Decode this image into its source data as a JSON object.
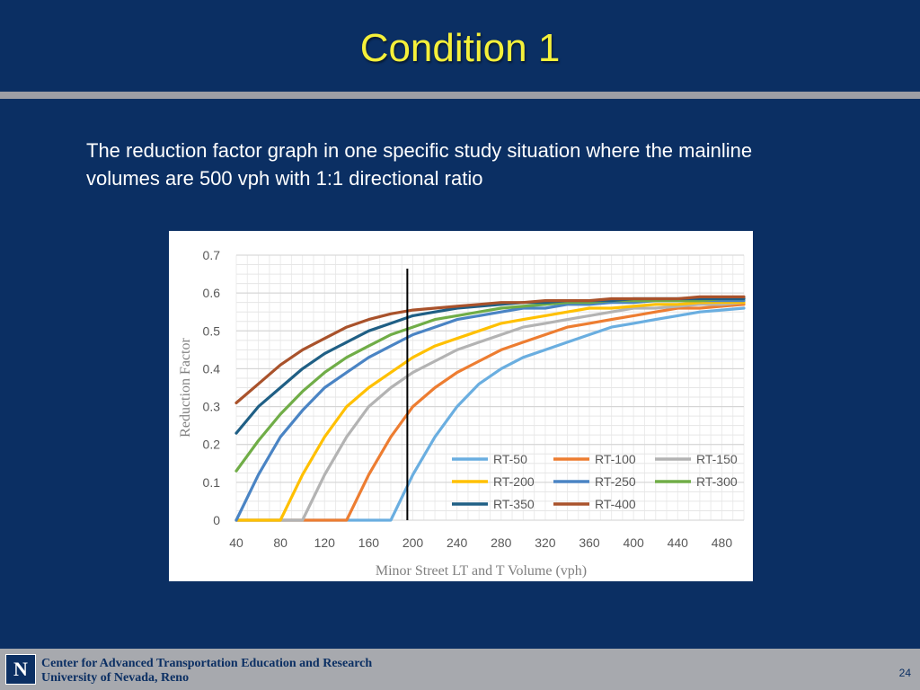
{
  "slide": {
    "title": "Condition 1",
    "subtitle": "The reduction factor graph in one specific study situation where the mainline volumes are 500 vph with 1:1 directional ratio",
    "page_number": "24",
    "footer": {
      "logo_text": "N",
      "line1": "Center for Advanced Transportation Education and Research",
      "line2": "University of Nevada, Reno"
    },
    "colors": {
      "background": "#0b2f63",
      "title": "#f5f03a",
      "rule": "#9c9ea5"
    }
  },
  "chart_data": {
    "type": "line",
    "xlabel": "Minor Street LT and T Volume (vph)",
    "ylabel": "Reduction Factor",
    "xlim": [
      40,
      500
    ],
    "ylim": [
      0,
      0.7
    ],
    "x_ticks": [
      40,
      80,
      120,
      160,
      200,
      240,
      280,
      320,
      360,
      400,
      440,
      480
    ],
    "y_ticks": [
      0,
      0.1,
      0.2,
      0.3,
      0.4,
      0.5,
      0.6,
      0.7
    ],
    "grid": true,
    "legend_position": "bottom-right",
    "vertical_marker_x": 195,
    "x": [
      40,
      60,
      80,
      100,
      120,
      140,
      160,
      180,
      200,
      220,
      240,
      260,
      280,
      300,
      320,
      340,
      360,
      380,
      400,
      420,
      440,
      460,
      480,
      500
    ],
    "series": [
      {
        "name": "RT-50",
        "color": "#6aaee0",
        "values": [
          0,
          0,
          0,
          0,
          0,
          0,
          0,
          0,
          0.12,
          0.22,
          0.3,
          0.36,
          0.4,
          0.43,
          0.45,
          0.47,
          0.49,
          0.51,
          0.52,
          0.53,
          0.54,
          0.55,
          0.555,
          0.56
        ]
      },
      {
        "name": "RT-100",
        "color": "#ed7d31",
        "values": [
          0,
          0,
          0,
          0,
          0,
          0,
          0.12,
          0.22,
          0.3,
          0.35,
          0.39,
          0.42,
          0.45,
          0.47,
          0.49,
          0.51,
          0.52,
          0.53,
          0.54,
          0.55,
          0.56,
          0.56,
          0.565,
          0.57
        ]
      },
      {
        "name": "RT-150",
        "color": "#b3b3b3",
        "values": [
          0,
          0,
          0,
          0,
          0.12,
          0.22,
          0.3,
          0.35,
          0.39,
          0.42,
          0.45,
          0.47,
          0.49,
          0.51,
          0.52,
          0.53,
          0.54,
          0.55,
          0.56,
          0.56,
          0.565,
          0.57,
          0.57,
          0.575
        ]
      },
      {
        "name": "RT-200",
        "color": "#ffc000",
        "values": [
          0,
          0,
          0,
          0.12,
          0.22,
          0.3,
          0.35,
          0.39,
          0.43,
          0.46,
          0.48,
          0.5,
          0.52,
          0.53,
          0.54,
          0.55,
          0.56,
          0.56,
          0.565,
          0.57,
          0.57,
          0.575,
          0.575,
          0.575
        ]
      },
      {
        "name": "RT-250",
        "color": "#4a84c4",
        "values": [
          0,
          0.12,
          0.22,
          0.29,
          0.35,
          0.39,
          0.43,
          0.46,
          0.49,
          0.51,
          0.53,
          0.54,
          0.55,
          0.56,
          0.56,
          0.57,
          0.57,
          0.575,
          0.575,
          0.58,
          0.58,
          0.58,
          0.58,
          0.58
        ]
      },
      {
        "name": "RT-300",
        "color": "#70ad47",
        "values": [
          0.13,
          0.21,
          0.28,
          0.34,
          0.39,
          0.43,
          0.46,
          0.49,
          0.51,
          0.53,
          0.54,
          0.55,
          0.56,
          0.565,
          0.57,
          0.575,
          0.575,
          0.58,
          0.58,
          0.58,
          0.58,
          0.58,
          0.585,
          0.585
        ]
      },
      {
        "name": "RT-350",
        "color": "#1f5f85",
        "values": [
          0.23,
          0.3,
          0.35,
          0.4,
          0.44,
          0.47,
          0.5,
          0.52,
          0.54,
          0.55,
          0.56,
          0.565,
          0.57,
          0.575,
          0.575,
          0.58,
          0.58,
          0.58,
          0.585,
          0.585,
          0.585,
          0.585,
          0.585,
          0.585
        ]
      },
      {
        "name": "RT-400",
        "color": "#a9522b",
        "values": [
          0.31,
          0.36,
          0.41,
          0.45,
          0.48,
          0.51,
          0.53,
          0.545,
          0.555,
          0.56,
          0.565,
          0.57,
          0.575,
          0.575,
          0.58,
          0.58,
          0.58,
          0.585,
          0.585,
          0.585,
          0.585,
          0.59,
          0.59,
          0.59
        ]
      }
    ]
  }
}
